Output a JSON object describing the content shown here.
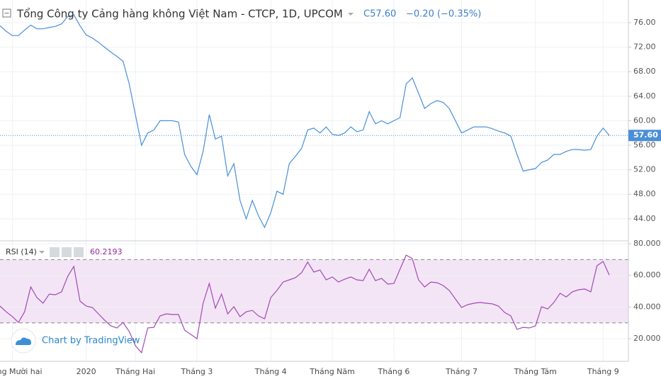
{
  "header": {
    "title": "Tổng Công ty Cảng hàng không Việt Nam - CTCP, 1D, UPCOM",
    "close": "C57.60",
    "change": "−0.20 (−0.35%)",
    "watermark": "Chart by TradingView"
  },
  "chart_data": [
    {
      "type": "line",
      "color": "#4a8fd8",
      "price_tag": "57.60",
      "grid": true,
      "ylim": [
        40.4,
        79.7
      ],
      "yticks": [
        {
          "value": 44,
          "label": "44.00"
        },
        {
          "value": 48,
          "label": "48.00"
        },
        {
          "value": 52,
          "label": "52.00"
        },
        {
          "value": 56,
          "label": "56.00"
        },
        {
          "value": 60,
          "label": "60.00"
        },
        {
          "value": 64,
          "label": "64.00"
        },
        {
          "value": 68,
          "label": "68.00"
        },
        {
          "value": 72,
          "label": "72.00"
        },
        {
          "value": 76,
          "label": "76.00"
        }
      ],
      "values": [
        75.5,
        74.6,
        73.9,
        73.9,
        74.8,
        75.6,
        75,
        75,
        75.2,
        75.4,
        75.8,
        77,
        77.3,
        75.5,
        74,
        73.5,
        72.8,
        72,
        71.2,
        70.5,
        69.7,
        66,
        61,
        56,
        58,
        58.5,
        60,
        60,
        60,
        59.8,
        54.5,
        52.6,
        51.2,
        55,
        61,
        57,
        57.5,
        51,
        53,
        47,
        44,
        47,
        44.5,
        42.6,
        45,
        48.5,
        48,
        53,
        54.2,
        55.5,
        58.5,
        58.8,
        58,
        59,
        57.8,
        57.6,
        58,
        59,
        58.2,
        58.5,
        61.5,
        59.5,
        60,
        59.5,
        60,
        60.5,
        66,
        67,
        64.5,
        62,
        62.8,
        63.3,
        63,
        62,
        60,
        58,
        58.5,
        59,
        59,
        59,
        58.7,
        58.3,
        58,
        57.5,
        54.5,
        51.8,
        52,
        52.2,
        53.2,
        53.6,
        54.5,
        54.5,
        55,
        55.3,
        55.3,
        55.2,
        55.3,
        57.5,
        58.8,
        57.6
      ]
    },
    {
      "type": "line",
      "name": "RSI (14)",
      "last_label": "60.2193",
      "color": "#a24ab5",
      "band_color": "#f3e5f5",
      "grid": true,
      "ylim": [
        5.7,
        81.8
      ],
      "bands": [
        30,
        70
      ],
      "yticks": [
        {
          "value": 20,
          "label": "20.0000"
        },
        {
          "value": 40,
          "label": "40.0000"
        },
        {
          "value": 60,
          "label": "60.0000"
        },
        {
          "value": 80,
          "label": "80.0000"
        }
      ],
      "categories": [
        null,
        null,
        "Tháng Mười hai",
        null,
        null,
        null,
        null,
        null,
        null,
        null,
        null,
        null,
        null,
        null,
        "2020",
        null,
        null,
        null,
        null,
        null,
        null,
        null,
        "Tháng Hai",
        null,
        null,
        null,
        null,
        null,
        null,
        null,
        null,
        null,
        "Tháng 3",
        null,
        null,
        null,
        null,
        null,
        null,
        null,
        null,
        null,
        null,
        null,
        "Tháng 4",
        null,
        null,
        null,
        null,
        null,
        null,
        null,
        null,
        null,
        "Tháng Năm",
        null,
        null,
        null,
        null,
        null,
        null,
        null,
        null,
        null,
        "Tháng 6",
        null,
        null,
        null,
        null,
        null,
        null,
        null,
        null,
        null,
        null,
        "Tháng 7",
        null,
        null,
        null,
        null,
        null,
        null,
        null,
        null,
        null,
        null,
        null,
        "Tháng Tám",
        null,
        null,
        null,
        null,
        null,
        null,
        null,
        null,
        null,
        null,
        "Tháng 9",
        null
      ],
      "values": [
        40.6,
        37,
        34,
        30.3,
        37,
        52.7,
        46,
        42.4,
        48.2,
        47.8,
        49.6,
        59.4,
        65.7,
        43.8,
        40.6,
        39.7,
        35.7,
        31.7,
        28.1,
        26.8,
        30.3,
        24.5,
        15.6,
        11.1,
        26.8,
        27.2,
        34.4,
        35.7,
        35.3,
        35.3,
        25.4,
        22.7,
        20,
        42.4,
        54.9,
        39.3,
        48.2,
        35.7,
        40.2,
        33.9,
        37,
        37.9,
        34.4,
        32.6,
        46,
        50.5,
        55.8,
        57.2,
        58.5,
        61.7,
        68.4,
        62.1,
        63.4,
        57.2,
        59,
        55.8,
        57.6,
        59,
        57.2,
        56.7,
        63.9,
        56.7,
        58.1,
        54.5,
        54.9,
        63.9,
        72.8,
        70.6,
        57.2,
        52.7,
        55.8,
        55.4,
        53.6,
        50.5,
        45.1,
        39.7,
        41.5,
        42.4,
        42.9,
        42.4,
        42,
        40.6,
        36.6,
        34.4,
        25.9,
        27.2,
        26.8,
        28.1,
        40.2,
        38.8,
        42.9,
        48.7,
        46.4,
        49.6,
        50.9,
        51.4,
        49.6,
        66.1,
        68.8,
        60.2193
      ]
    }
  ]
}
